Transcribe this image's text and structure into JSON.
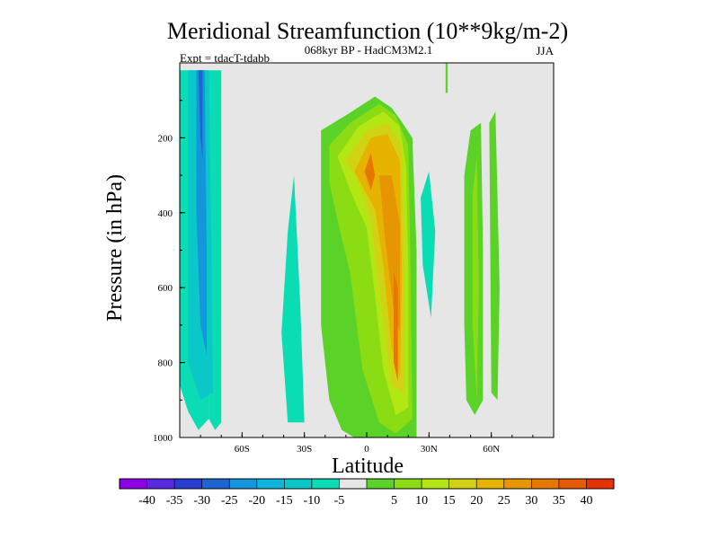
{
  "chart_data": {
    "type": "heatmap",
    "title": "Meridional Streamfunction (10**9kg/m-2)",
    "subtitle": "068kyr BP - HadCM3M2.1",
    "left_note": "Expt = tdacT-tdabb",
    "right_note": "JJA",
    "xlabel": "Latitude",
    "ylabel": "Pressure (in hPa)",
    "xlim": [
      -90,
      90
    ],
    "ylim": [
      1000,
      0
    ],
    "x_ticks": [
      {
        "v": -60,
        "label": "60S"
      },
      {
        "v": -30,
        "label": "30S"
      },
      {
        "v": 0,
        "label": "0"
      },
      {
        "v": 30,
        "label": "30N"
      },
      {
        "v": 60,
        "label": "60N"
      }
    ],
    "y_ticks": [
      {
        "v": 200,
        "label": "200"
      },
      {
        "v": 400,
        "label": "400"
      },
      {
        "v": 600,
        "label": "600"
      },
      {
        "v": 800,
        "label": "800"
      },
      {
        "v": 1000,
        "label": "1000"
      }
    ],
    "background": "#e6e6e6",
    "colorbar": {
      "colors": [
        "#8c00e6",
        "#5a28e0",
        "#283cd2",
        "#1e64d2",
        "#1496dc",
        "#0fb4dc",
        "#0ac8c8",
        "#0adcb4",
        "#e6e6e6",
        "#5ad228",
        "#8cdc14",
        "#b4e614",
        "#d2d214",
        "#e6b400",
        "#e69600",
        "#e67800",
        "#e65a00",
        "#e63200"
      ],
      "labels": [
        "-40",
        "-35",
        "-30",
        "-25",
        "-20",
        "-15",
        "-10",
        "-5",
        "5",
        "10",
        "15",
        "20",
        "25",
        "30",
        "35",
        "40"
      ]
    },
    "regions": [
      {
        "name": "sh-polar-cell",
        "level": -5,
        "color": "#0adcb4",
        "pts": [
          [
            -90,
            20
          ],
          [
            -76,
            20
          ],
          [
            -76,
            950
          ],
          [
            -81,
            980
          ],
          [
            -86,
            930
          ],
          [
            -90,
            860
          ]
        ]
      },
      {
        "name": "sh-polar-cell-outer",
        "level": -5,
        "color": "#0adcb4",
        "pts": [
          [
            -76,
            20
          ],
          [
            -70,
            20
          ],
          [
            -70,
            960
          ],
          [
            -73,
            980
          ],
          [
            -76,
            950
          ]
        ]
      },
      {
        "name": "sh-polar-core",
        "level": -10,
        "color": "#0ac8c8",
        "pts": [
          [
            -86,
            20
          ],
          [
            -76,
            20
          ],
          [
            -75,
            400
          ],
          [
            -74,
            880
          ],
          [
            -80,
            900
          ],
          [
            -86,
            800
          ]
        ]
      },
      {
        "name": "sh-polar-core-inner",
        "level": -15,
        "color": "#1496dc",
        "pts": [
          [
            -82,
            20
          ],
          [
            -78,
            20
          ],
          [
            -77,
            500
          ],
          [
            -77,
            780
          ],
          [
            -80,
            700
          ],
          [
            -82,
            400
          ]
        ]
      },
      {
        "name": "sh-polar-core-max",
        "level": -20,
        "color": "#1e64d2",
        "pts": [
          [
            -81,
            20
          ],
          [
            -79,
            20
          ],
          [
            -79,
            260
          ],
          [
            -80,
            200
          ]
        ]
      },
      {
        "name": "sh-midlat-cell",
        "level": -5,
        "color": "#0adcb4",
        "pts": [
          [
            -41,
            720
          ],
          [
            -38,
            450
          ],
          [
            -35,
            300
          ],
          [
            -32,
            640
          ],
          [
            -30,
            960
          ],
          [
            -38,
            960
          ]
        ]
      },
      {
        "name": "hadley-cell-outer",
        "level": 5,
        "color": "#5ad228",
        "pts": [
          [
            -22,
            180
          ],
          [
            -10,
            140
          ],
          [
            4,
            90
          ],
          [
            12,
            120
          ],
          [
            16,
            150
          ],
          [
            22,
            200
          ],
          [
            24,
            500
          ],
          [
            24,
            1000
          ],
          [
            10,
            1030
          ],
          [
            0,
            1010
          ],
          [
            -6,
            1000
          ],
          [
            -12,
            980
          ],
          [
            -18,
            900
          ],
          [
            -22,
            700
          ]
        ]
      },
      {
        "name": "hadley-cell-10",
        "level": 10,
        "color": "#8cdc14",
        "pts": [
          [
            -18,
            220
          ],
          [
            -8,
            160
          ],
          [
            6,
            110
          ],
          [
            14,
            140
          ],
          [
            20,
            220
          ],
          [
            21,
            500
          ],
          [
            22,
            950
          ],
          [
            14,
            990
          ],
          [
            6,
            960
          ],
          [
            -2,
            820
          ],
          [
            -8,
            560
          ],
          [
            -14,
            420
          ],
          [
            -18,
            320
          ]
        ]
      },
      {
        "name": "hadley-cell-15",
        "level": 15,
        "color": "#b4e614",
        "pts": [
          [
            -14,
            250
          ],
          [
            -4,
            170
          ],
          [
            8,
            130
          ],
          [
            16,
            170
          ],
          [
            19,
            280
          ],
          [
            20,
            550
          ],
          [
            20,
            920
          ],
          [
            14,
            940
          ],
          [
            8,
            820
          ],
          [
            4,
            620
          ],
          [
            0,
            440
          ],
          [
            -8,
            340
          ]
        ]
      },
      {
        "name": "hadley-cell-20",
        "level": 20,
        "color": "#d2d214",
        "pts": [
          [
            -10,
            260
          ],
          [
            0,
            180
          ],
          [
            10,
            160
          ],
          [
            17,
            220
          ],
          [
            18,
            520
          ],
          [
            18,
            880
          ],
          [
            12,
            860
          ],
          [
            6,
            600
          ],
          [
            2,
            420
          ],
          [
            -4,
            320
          ]
        ]
      },
      {
        "name": "hadley-cell-25",
        "level": 25,
        "color": "#e6b400",
        "pts": [
          [
            -6,
            290
          ],
          [
            2,
            200
          ],
          [
            10,
            190
          ],
          [
            16,
            260
          ],
          [
            17,
            560
          ],
          [
            16,
            840
          ],
          [
            12,
            760
          ],
          [
            8,
            540
          ],
          [
            4,
            390
          ]
        ]
      },
      {
        "name": "hadley-cell-30",
        "level": 30,
        "color": "#e69600",
        "pts": [
          [
            6,
            300
          ],
          [
            12,
            300
          ],
          [
            16,
            430
          ],
          [
            16,
            720
          ],
          [
            13,
            660
          ],
          [
            9,
            480
          ]
        ]
      },
      {
        "name": "hadley-cell-35",
        "level": 35,
        "color": "#e67800",
        "pts": [
          [
            -1,
            290
          ],
          [
            2,
            240
          ],
          [
            4,
            300
          ],
          [
            2,
            340
          ]
        ]
      },
      {
        "name": "hadley-cell-35b",
        "level": 35,
        "color": "#e67800",
        "pts": [
          [
            13,
            560
          ],
          [
            15,
            600
          ],
          [
            15,
            850
          ],
          [
            13,
            800
          ]
        ]
      },
      {
        "name": "nh-narrow-line",
        "level": 5,
        "color": "#5ad228",
        "pts": [
          [
            38,
            0
          ],
          [
            39,
            0
          ],
          [
            39,
            80
          ],
          [
            38,
            80
          ]
        ]
      },
      {
        "name": "nh-midlat-cell",
        "level": -5,
        "color": "#0adcb4",
        "pts": [
          [
            26,
            360
          ],
          [
            30,
            290
          ],
          [
            33,
            450
          ],
          [
            31,
            680
          ],
          [
            27,
            540
          ]
        ]
      },
      {
        "name": "nh-ferrel-cell",
        "level": 5,
        "color": "#5ad228",
        "pts": [
          [
            47,
            300
          ],
          [
            50,
            180
          ],
          [
            55,
            160
          ],
          [
            56,
            500
          ],
          [
            56,
            900
          ],
          [
            52,
            940
          ],
          [
            48,
            900
          ],
          [
            47,
            700
          ]
        ]
      },
      {
        "name": "nh-ferrel-core",
        "level": 10,
        "color": "#8cdc14",
        "pts": [
          [
            51,
            350
          ],
          [
            53,
            250
          ],
          [
            54,
            600
          ],
          [
            53,
            900
          ],
          [
            51,
            700
          ]
        ]
      },
      {
        "name": "nh-polar-cell",
        "level": 5,
        "color": "#5ad228",
        "pts": [
          [
            59,
            160
          ],
          [
            62,
            130
          ],
          [
            64,
            600
          ],
          [
            63,
            900
          ],
          [
            60,
            880
          ]
        ]
      }
    ]
  }
}
